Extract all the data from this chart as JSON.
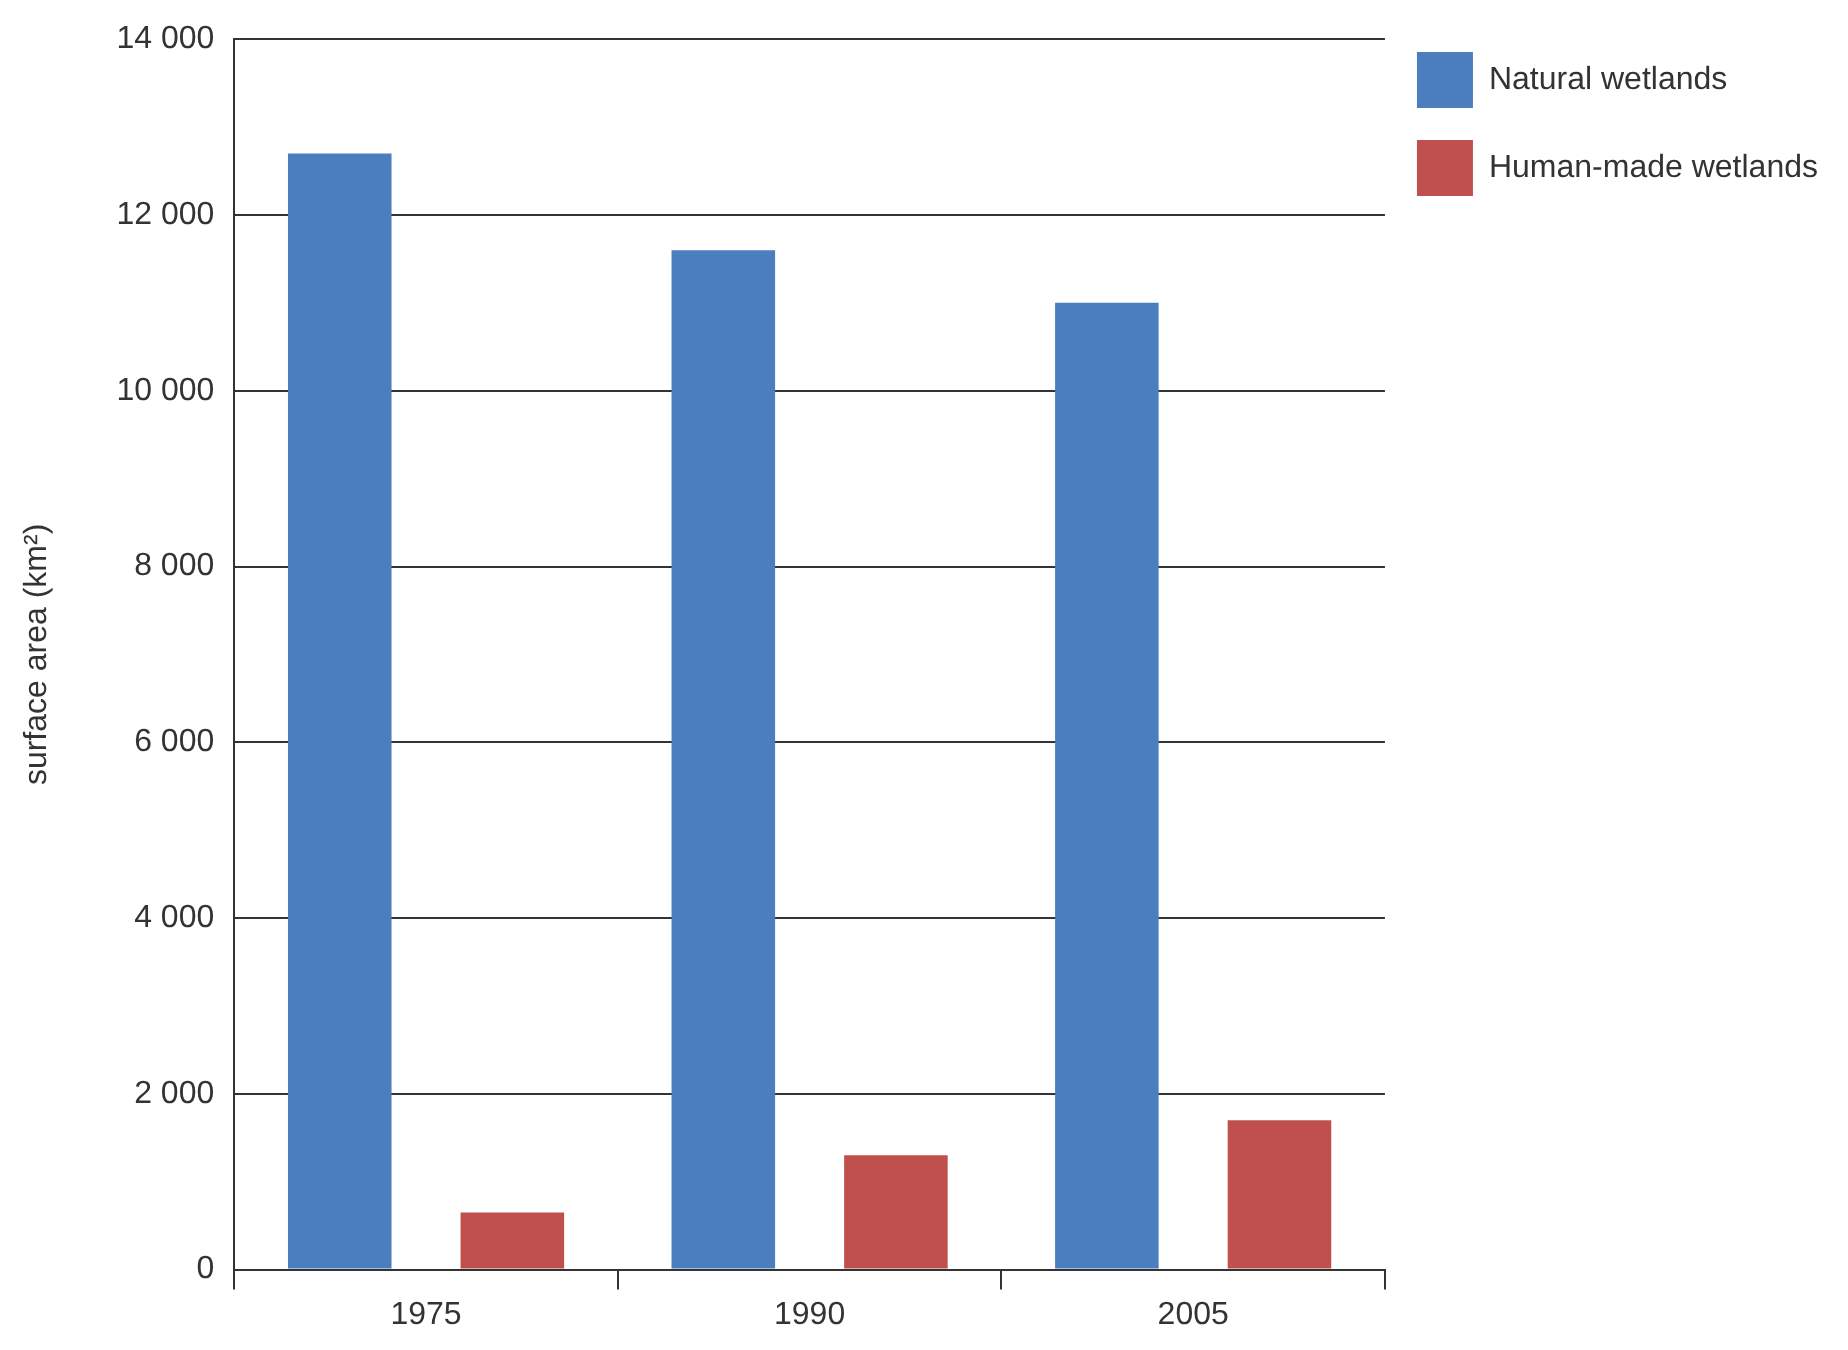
{
  "chart_data": {
    "type": "bar",
    "ylabel": "surface area (km²)",
    "categories": [
      "1975",
      "1990",
      "2005"
    ],
    "series": [
      {
        "name": "Natural wetlands",
        "color": "#4a7ebf",
        "values": [
          12700,
          11600,
          11000
        ]
      },
      {
        "name": "Human-made wetlands",
        "color": "#c0504d",
        "values": [
          650,
          1300,
          1700
        ]
      }
    ],
    "ylim": [
      0,
      14000
    ],
    "yticks": [
      {
        "value": 0,
        "label": "0"
      },
      {
        "value": 2000,
        "label": "2 000"
      },
      {
        "value": 4000,
        "label": "4 000"
      },
      {
        "value": 6000,
        "label": "6 000"
      },
      {
        "value": 8000,
        "label": "8 000"
      },
      {
        "value": 10000,
        "label": "10 000"
      },
      {
        "value": 12000,
        "label": "12 000"
      },
      {
        "value": 14000,
        "label": "14 000"
      }
    ],
    "grid": "y",
    "legend": "top right"
  }
}
